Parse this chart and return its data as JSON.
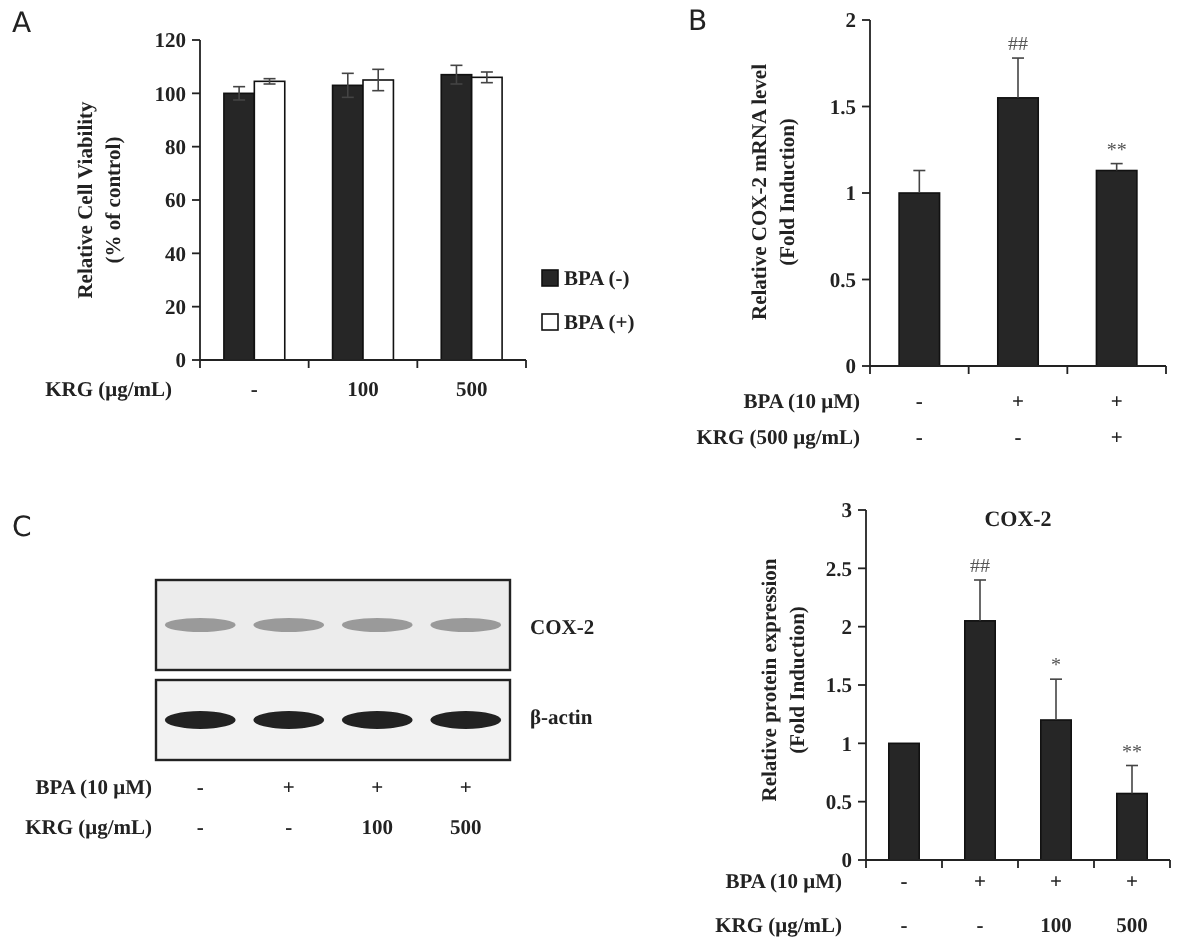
{
  "chart_data": [
    {
      "type": "bar",
      "annotations": [
        "A"
      ],
      "categories": [
        "-",
        "100",
        "500"
      ],
      "xlabel": "KRG (μg/mL)",
      "ylabel": "Relative Cell Viability\n(% of control)",
      "ylim": [
        0,
        120
      ],
      "yticks": [
        0,
        20,
        40,
        60,
        80,
        100,
        120
      ],
      "legend": "right",
      "series": [
        {
          "name": "BPA (-)",
          "color": "#262626",
          "values": [
            100,
            103,
            107
          ],
          "errors": [
            2.5,
            4.5,
            3.5
          ]
        },
        {
          "name": "BPA (+)",
          "color": "#ffffff",
          "values": [
            104.5,
            105,
            106
          ],
          "errors": [
            1,
            4,
            2
          ]
        }
      ]
    },
    {
      "type": "bar",
      "annotations": [
        "B",
        {
          "text": "##",
          "x": "+\n-",
          "y": 1.78
        },
        {
          "text": "**",
          "x": "+\n+",
          "y": 1.17
        }
      ],
      "categories": [
        "-\n-",
        "+\n-",
        "+\n+"
      ],
      "xlabel": "BPA (10 μM)\nKRG (500 μg/mL)",
      "ylabel": "Relative COX-2 mRNA level\n(Fold  Induction)",
      "ylim": [
        0,
        2
      ],
      "yticks": [
        0,
        0.5,
        1,
        1.5,
        2
      ],
      "color": "#262626",
      "values": [
        1,
        1.55,
        1.13
      ],
      "errors": [
        [
          1,
          1.13
        ],
        [
          1.55,
          1.78
        ],
        [
          1.13,
          1.17
        ]
      ]
    },
    {
      "type": "other",
      "annotations": [
        "C",
        "COX-2",
        "β-actin"
      ],
      "categories": [
        "-\n-",
        "+\n-",
        "+\n100",
        "+\n500"
      ],
      "xlabel": "BPA (10 μM)\nKRG (μg/mL)"
    },
    {
      "type": "bar",
      "title": "COX-2",
      "annotations": [
        {
          "text": "##",
          "x": "+\n-",
          "y": 2.4
        },
        {
          "text": "*",
          "x": "+\n100",
          "y": 1.55
        },
        {
          "text": "**",
          "x": "+\n500",
          "y": 0.81
        }
      ],
      "categories": [
        "-\n-",
        "+\n-",
        "+\n100",
        "+\n500"
      ],
      "xlabel": "BPA (10 μM)\nKRG (μg/mL)",
      "ylabel": "Relative protein expression\n(Fold Induction)",
      "ylim": [
        0,
        3
      ],
      "yticks": [
        0,
        0.5,
        1,
        1.5,
        2,
        2.5,
        3
      ],
      "color": "#262626",
      "values": [
        1,
        2.05,
        1.2,
        0.57
      ],
      "errors": [
        null,
        [
          2.05,
          2.4
        ],
        [
          1.2,
          1.55
        ],
        [
          0.57,
          0.81
        ]
      ]
    }
  ]
}
